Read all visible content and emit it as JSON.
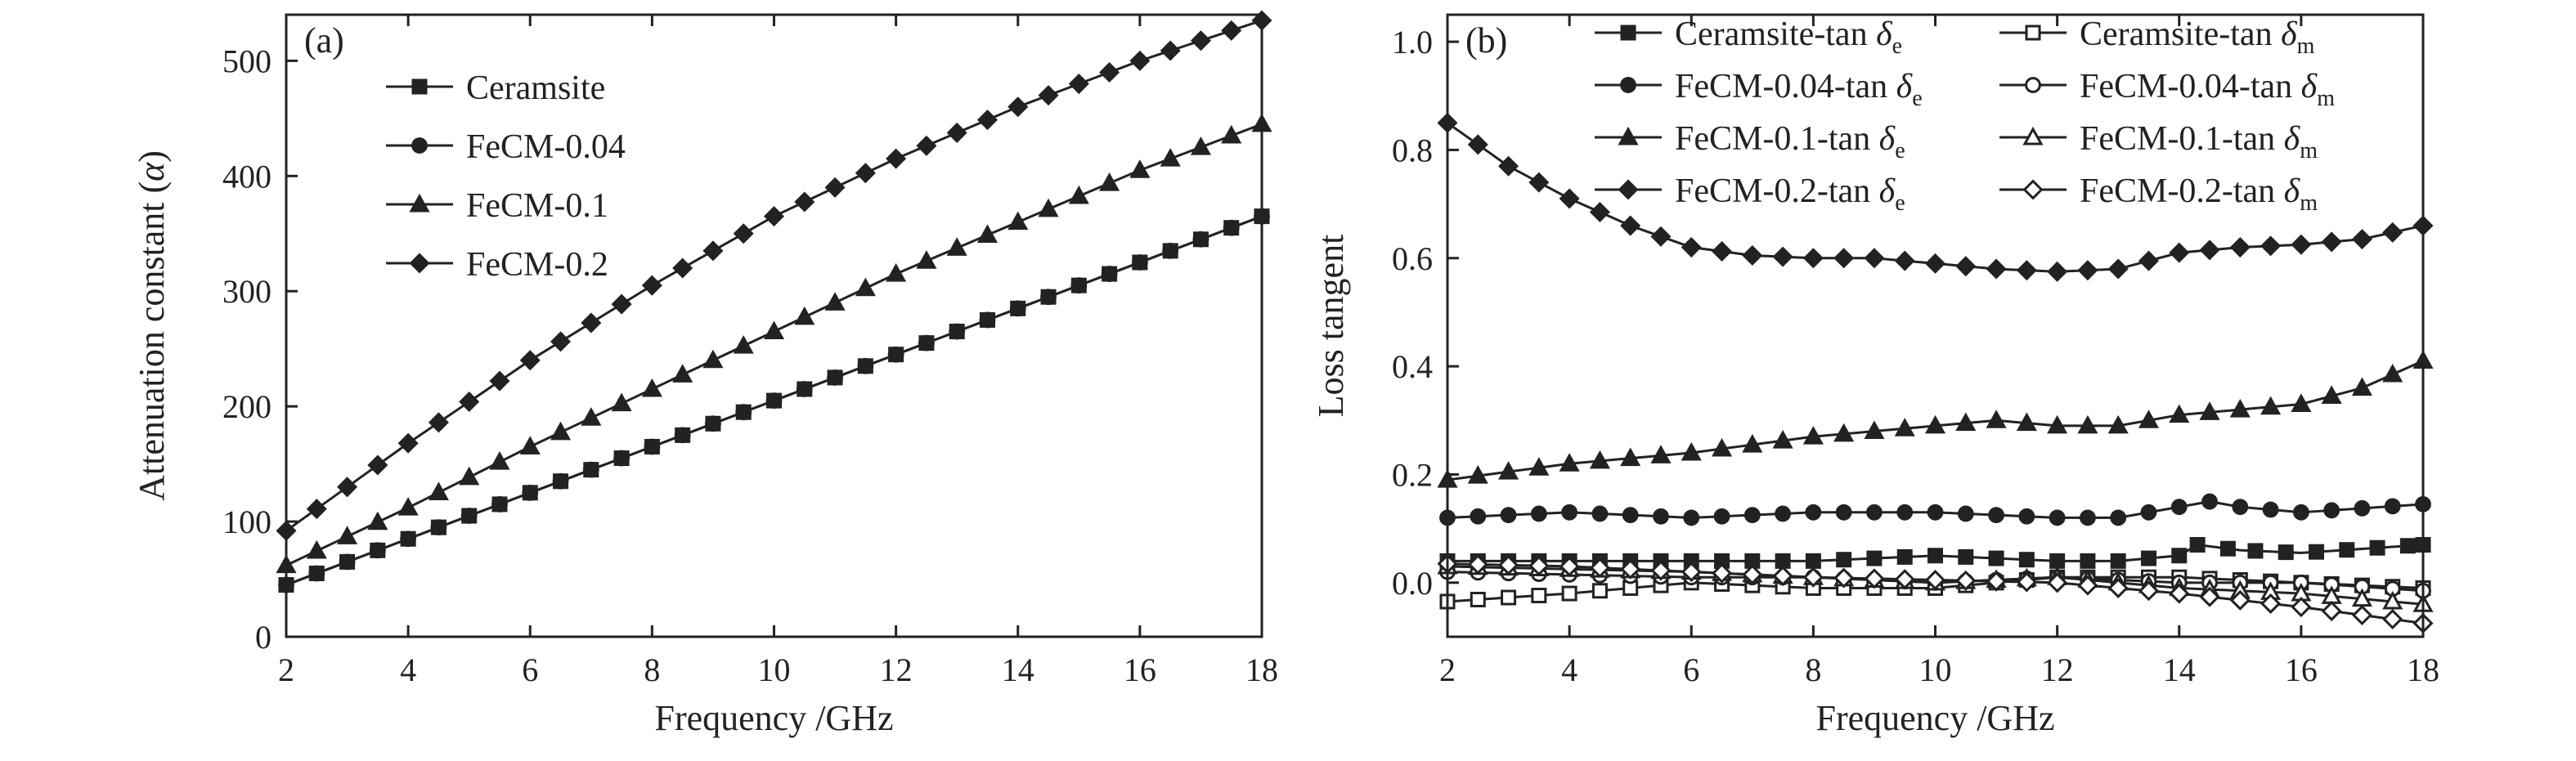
{
  "chart_data": [
    {
      "type": "line",
      "panel_label": "(a)",
      "xlabel": "Frequency /GHz",
      "ylabel_main": "Attenuation constant (",
      "ylabel_symbol": "α",
      "ylabel_close": ")",
      "xlim": [
        2,
        18
      ],
      "ylim": [
        0,
        540
      ],
      "xticks": [
        2,
        4,
        6,
        8,
        10,
        12,
        14,
        16,
        18
      ],
      "yticks": [
        0,
        100,
        200,
        300,
        400,
        500
      ],
      "legend_position": "top-left",
      "line_color": "#222222",
      "series": [
        {
          "name": "Ceramsite",
          "marker": "square-filled",
          "x": [
            2,
            4,
            6,
            8,
            10,
            12,
            14,
            16,
            18
          ],
          "y": [
            45,
            85,
            125,
            165,
            205,
            245,
            285,
            325,
            365
          ]
        },
        {
          "name": "FeCM-0.04",
          "marker": "circle-filled",
          "x": [
            2,
            4,
            6,
            8,
            10,
            12,
            14,
            16,
            18
          ],
          "y": [
            45,
            85,
            125,
            165,
            205,
            245,
            285,
            325,
            365
          ]
        },
        {
          "name": "FeCM-0.1",
          "marker": "triangle-filled",
          "x": [
            2,
            4,
            6,
            8,
            10,
            12,
            14,
            16,
            18
          ],
          "y": [
            62,
            112,
            165,
            215,
            265,
            315,
            360,
            405,
            445
          ]
        },
        {
          "name": "FeCM-0.2",
          "marker": "diamond-filled",
          "x": [
            2,
            4,
            6,
            8,
            10,
            12,
            14,
            16,
            18
          ],
          "y": [
            92,
            168,
            240,
            305,
            365,
            415,
            460,
            500,
            535
          ]
        }
      ]
    },
    {
      "type": "line",
      "panel_label": "(b)",
      "xlabel": "Frequency /GHz",
      "ylabel": "Loss tangent",
      "xlim": [
        2,
        18
      ],
      "ylim": [
        -0.1,
        1.05
      ],
      "xticks": [
        2,
        4,
        6,
        8,
        10,
        12,
        14,
        16,
        18
      ],
      "yticks": [
        0.0,
        0.2,
        0.4,
        0.6,
        0.8,
        1.0
      ],
      "ytick_labels": [
        "0.0",
        "0.2",
        "0.4",
        "0.6",
        "0.8",
        "1.0"
      ],
      "legend_position": "top",
      "line_color": "#222222",
      "series": [
        {
          "name_main": "Ceramsite-tan ",
          "name_symbol": "δ",
          "name_sub": "e",
          "marker": "square-filled",
          "x": [
            2,
            4,
            6,
            8,
            10,
            12,
            13,
            14,
            14.3,
            15,
            16,
            18
          ],
          "y": [
            0.04,
            0.04,
            0.04,
            0.04,
            0.05,
            0.04,
            0.04,
            0.05,
            0.07,
            0.06,
            0.055,
            0.07
          ]
        },
        {
          "name_main": "FeCM-0.04-tan ",
          "name_symbol": "δ",
          "name_sub": "e",
          "marker": "circle-filled",
          "x": [
            2,
            4,
            6,
            8,
            10,
            12,
            13,
            14,
            14.5,
            15,
            16,
            18
          ],
          "y": [
            0.12,
            0.13,
            0.12,
            0.13,
            0.13,
            0.12,
            0.12,
            0.14,
            0.15,
            0.14,
            0.13,
            0.145
          ]
        },
        {
          "name_main": "FeCM-0.1-tan ",
          "name_symbol": "δ",
          "name_sub": "e",
          "marker": "triangle-filled",
          "x": [
            2,
            4,
            6,
            8,
            10,
            11,
            12,
            13,
            14,
            16,
            17,
            18
          ],
          "y": [
            0.19,
            0.22,
            0.24,
            0.27,
            0.29,
            0.3,
            0.29,
            0.29,
            0.31,
            0.33,
            0.36,
            0.41
          ]
        },
        {
          "name_main": "FeCM-0.2-tan ",
          "name_symbol": "δ",
          "name_sub": "e",
          "marker": "diamond-filled",
          "x": [
            2,
            3,
            4,
            5,
            6,
            7,
            8,
            9,
            10,
            11,
            12,
            13,
            14,
            15,
            16,
            17,
            18
          ],
          "y": [
            0.85,
            0.77,
            0.71,
            0.66,
            0.62,
            0.605,
            0.6,
            0.6,
            0.59,
            0.58,
            0.575,
            0.58,
            0.61,
            0.62,
            0.625,
            0.635,
            0.66
          ]
        },
        {
          "name_main": "Ceramsite-tan ",
          "name_symbol": "δ",
          "name_sub": "m",
          "marker": "square-open",
          "x": [
            2,
            4,
            6,
            8,
            10,
            12,
            14,
            16,
            18
          ],
          "y": [
            -0.035,
            -0.02,
            0.0,
            -0.01,
            -0.01,
            0.01,
            0.01,
            0.0,
            -0.01
          ]
        },
        {
          "name_main": "FeCM-0.04-tan ",
          "name_symbol": "δ",
          "name_sub": "m",
          "marker": "circle-open",
          "x": [
            2,
            4,
            6,
            8,
            10,
            12,
            14,
            16,
            18
          ],
          "y": [
            0.02,
            0.015,
            0.01,
            0.01,
            0.0,
            0.01,
            0.0,
            0.0,
            -0.015
          ]
        },
        {
          "name_main": "FeCM-0.1-tan ",
          "name_symbol": "δ",
          "name_sub": "m",
          "marker": "triangle-open",
          "x": [
            2,
            4,
            6,
            8,
            10,
            12,
            14,
            16,
            18
          ],
          "y": [
            0.03,
            0.025,
            0.02,
            0.01,
            0.0,
            0.01,
            -0.01,
            -0.02,
            -0.04
          ]
        },
        {
          "name_main": "FeCM-0.2-tan ",
          "name_symbol": "δ",
          "name_sub": "m",
          "marker": "diamond-open",
          "x": [
            2,
            4,
            6,
            8,
            10,
            12,
            14,
            16,
            18
          ],
          "y": [
            0.035,
            0.03,
            0.02,
            0.01,
            0.005,
            0.0,
            -0.02,
            -0.045,
            -0.075
          ]
        }
      ]
    }
  ]
}
